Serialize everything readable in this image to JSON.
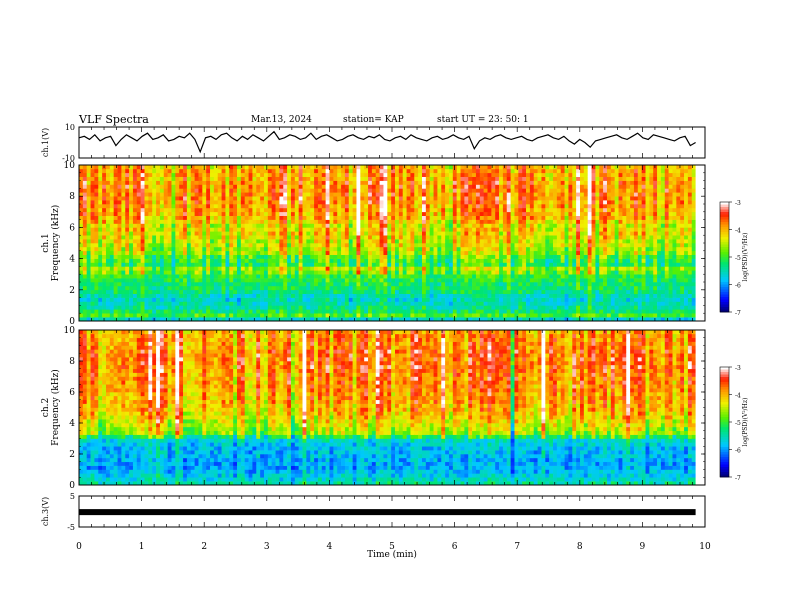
{
  "header": {
    "title": "VLF Spectra",
    "date": "Mar.13, 2024",
    "station": "station= KAP",
    "start": "start  UT  =   23: 50: 1"
  },
  "chart_data": [
    {
      "type": "line",
      "panel": "ch1-waveform",
      "ylabel": "ch.1(V)",
      "ylim": [
        -10,
        10
      ],
      "yticks": [
        "10",
        "-10"
      ],
      "xlim": [
        0,
        10
      ],
      "series": [
        {
          "values": [
            3,
            4,
            2,
            5,
            1,
            3,
            4,
            -2,
            2,
            5,
            3,
            1,
            4,
            6,
            2,
            3,
            5,
            1,
            2,
            4,
            3,
            6,
            2,
            -6,
            3,
            4,
            2,
            5,
            6,
            3,
            1,
            4,
            2,
            5,
            3,
            1,
            4,
            7,
            2,
            3,
            5,
            4,
            2,
            3,
            6,
            2,
            4,
            5,
            3,
            1,
            2,
            4,
            5,
            3,
            2,
            4,
            3,
            5,
            2,
            1,
            3,
            4,
            2,
            5,
            3,
            2,
            1,
            3,
            4,
            2,
            3,
            5,
            3,
            2,
            4,
            -4,
            1,
            3,
            2,
            4,
            5,
            3,
            2,
            3,
            4,
            2,
            1,
            3,
            4,
            5,
            3,
            2,
            4,
            1,
            -1,
            2,
            0,
            -3,
            1,
            2,
            3,
            4,
            5,
            3,
            2,
            4,
            6,
            3,
            2,
            5,
            4,
            3,
            2,
            1,
            3,
            4,
            -2,
            0
          ]
        }
      ]
    },
    {
      "type": "heatmap",
      "panel": "ch1-spectrogram",
      "ylabel_lines": [
        "ch.1",
        "Frequency (kHz)"
      ],
      "ylim": [
        0,
        10
      ],
      "yticks": [
        "0",
        "2",
        "4",
        "6",
        "8",
        "10"
      ],
      "colorbar": {
        "ticks": [
          "-3",
          "-4",
          "-5",
          "-6",
          "-7"
        ],
        "label": "log(PSD)(V²/Hz)",
        "range": [
          -7,
          -3
        ]
      },
      "freq_profile_logpsd": [
        -5.6,
        -4.9,
        -5.2,
        -5.4,
        -5.5,
        -5.6,
        -5.5,
        -5.3,
        -5.2,
        -5.2,
        -5.1,
        -5.0,
        -4.8,
        -4.6,
        -5.1,
        -5.0,
        -4.9,
        -4.6,
        -4.5,
        -4.4,
        -4.4,
        -4.3,
        -4.2,
        -4.2,
        -4.3,
        -4.1,
        -4.0,
        -3.9,
        -3.9,
        -3.9,
        -3.8,
        -3.8,
        -3.8,
        -3.8,
        -3.8,
        -3.8,
        -3.9,
        -3.9,
        -3.9,
        -4.0
      ]
    },
    {
      "type": "heatmap",
      "panel": "ch2-spectrogram",
      "ylabel_lines": [
        "ch.2",
        "Frequency (kHz)"
      ],
      "ylim": [
        0,
        10
      ],
      "yticks": [
        "0",
        "2",
        "4",
        "6",
        "8",
        "10"
      ],
      "colorbar": {
        "ticks": [
          "-3",
          "-4",
          "-5",
          "-6",
          "-7"
        ],
        "label": "log(PSD)(V²/Hz)",
        "range": [
          -7,
          -3
        ]
      },
      "freq_profile_logpsd": [
        -5.4,
        -5.6,
        -5.7,
        -5.8,
        -5.9,
        -5.9,
        -5.9,
        -5.8,
        -5.8,
        -5.8,
        -5.7,
        -5.6,
        -5.1,
        -4.6,
        -4.5,
        -4.4,
        -4.3,
        -4.2,
        -4.1,
        -4.0,
        -4.0,
        -3.9,
        -3.9,
        -3.9,
        -3.8,
        -3.8,
        -3.8,
        -3.8,
        -3.8,
        -3.7,
        -3.7,
        -3.7,
        -3.7,
        -3.7,
        -3.7,
        -3.8,
        -3.8,
        -3.8,
        -3.8,
        -3.9
      ]
    },
    {
      "type": "line",
      "panel": "ch3-waveform",
      "ylabel": "ch.3(V)",
      "ylim": [
        -5,
        5
      ],
      "yticks": [
        "5",
        "-5"
      ],
      "xlim": [
        0,
        10
      ],
      "series": [
        {
          "values": [
            -0.2,
            -0.2
          ]
        }
      ]
    }
  ],
  "xaxis": {
    "label": "Time  (min)",
    "ticks": [
      "0",
      "1",
      "2",
      "3",
      "4",
      "5",
      "6",
      "7",
      "8",
      "9",
      "10"
    ],
    "range": [
      0,
      10
    ]
  }
}
